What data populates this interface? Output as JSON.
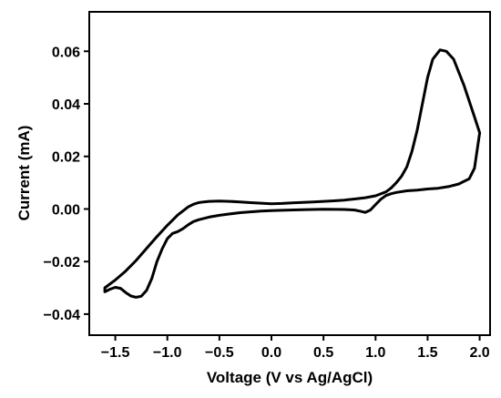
{
  "chart_data": {
    "type": "line",
    "title": "",
    "xlabel": "Voltage (V vs Ag/AgCl)",
    "ylabel": "Current (mA)",
    "xlim": [
      -1.75,
      2.1
    ],
    "ylim": [
      -0.048,
      0.075
    ],
    "x_ticks": [
      -1.5,
      -1.0,
      -0.5,
      0.0,
      0.5,
      1.0,
      1.5,
      2.0
    ],
    "x_tick_labels": [
      "−1.5",
      "−1.0",
      "−0.5",
      "0.0",
      "0.5",
      "1.0",
      "1.5",
      "2.0"
    ],
    "y_ticks": [
      -0.04,
      -0.02,
      0.0,
      0.02,
      0.04,
      0.06
    ],
    "y_tick_labels": [
      "−0.04",
      "−0.02",
      "0.00",
      "0.02",
      "0.04",
      "0.06"
    ],
    "grid": false,
    "legend": "none",
    "series": [
      {
        "x": [
          2.0,
          1.95,
          1.85,
          1.75,
          1.68,
          1.62,
          1.55,
          1.5,
          1.45,
          1.4,
          1.35,
          1.3,
          1.25,
          1.2,
          1.15,
          1.1,
          1.0,
          0.9,
          0.8,
          0.7,
          0.6,
          0.5,
          0.4,
          0.3,
          0.2,
          0.1,
          0.0,
          -0.1,
          -0.2,
          -0.3,
          -0.4,
          -0.5,
          -0.6,
          -0.65,
          -0.7,
          -0.75,
          -0.8,
          -0.9,
          -1.0,
          -1.1,
          -1.2,
          -1.3,
          -1.4,
          -1.5,
          -1.6,
          -1.6,
          -1.55,
          -1.5,
          -1.45,
          -1.4,
          -1.35,
          -1.3,
          -1.25,
          -1.2,
          -1.15,
          -1.1,
          -1.05,
          -1.0,
          -0.95,
          -0.9,
          -0.85,
          -0.8,
          -0.75,
          -0.7,
          -0.6,
          -0.5,
          -0.4,
          -0.3,
          -0.2,
          -0.1,
          0.0,
          0.1,
          0.3,
          0.5,
          0.7,
          0.8,
          0.85,
          0.9,
          0.95,
          1.0,
          1.05,
          1.1,
          1.15,
          1.2,
          1.3,
          1.4,
          1.5,
          1.6,
          1.7,
          1.8,
          1.9,
          1.95,
          2.0
        ],
        "y": [
          0.029,
          0.035,
          0.047,
          0.057,
          0.06,
          0.0605,
          0.057,
          0.05,
          0.04,
          0.03,
          0.022,
          0.016,
          0.0125,
          0.01,
          0.008,
          0.0065,
          0.005,
          0.0043,
          0.0038,
          0.0034,
          0.0031,
          0.0029,
          0.0027,
          0.0025,
          0.0023,
          0.0021,
          0.002,
          0.0022,
          0.0024,
          0.0027,
          0.0029,
          0.003,
          0.0029,
          0.0027,
          0.0024,
          0.0018,
          0.0008,
          -0.0023,
          -0.0062,
          -0.0105,
          -0.015,
          -0.0196,
          -0.0236,
          -0.027,
          -0.03,
          -0.0315,
          -0.0305,
          -0.0298,
          -0.0302,
          -0.0318,
          -0.0331,
          -0.0336,
          -0.0332,
          -0.031,
          -0.0265,
          -0.02,
          -0.0152,
          -0.0113,
          -0.0093,
          -0.0086,
          -0.0075,
          -0.006,
          -0.0048,
          -0.0041,
          -0.0031,
          -0.0024,
          -0.0019,
          -0.0014,
          -0.0011,
          -0.0008,
          -0.0006,
          -0.0005,
          -0.0003,
          -0.0001,
          -0.0002,
          -0.0004,
          -0.0008,
          -0.0013,
          -0.0004,
          0.0017,
          0.0037,
          0.0051,
          0.0058,
          0.0063,
          0.0069,
          0.0072,
          0.0076,
          0.0079,
          0.0085,
          0.0095,
          0.0115,
          0.0155,
          0.029
        ]
      }
    ]
  }
}
